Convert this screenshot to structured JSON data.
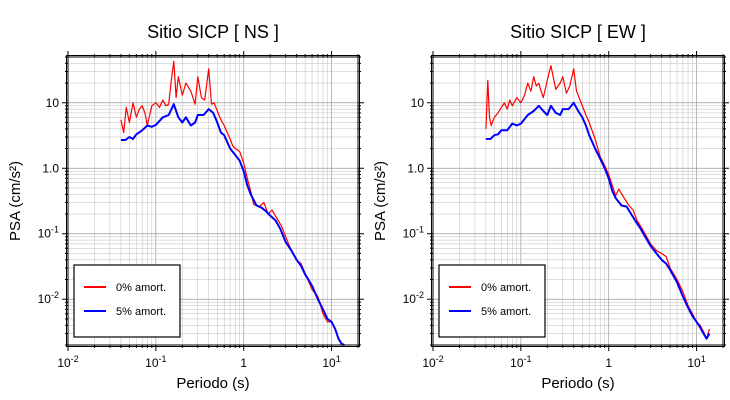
{
  "chart_data": [
    {
      "type": "line",
      "title": "Sitio SICP [ NS ]",
      "xlabel": "Periodo (s)",
      "ylabel": "PSA (cm/s²)",
      "xscale": "log",
      "yscale": "log",
      "xlim": [
        0.01,
        20
      ],
      "ylim": [
        0.002,
        50
      ],
      "grid": true,
      "legend": "bottom-left",
      "series": [
        {
          "name": "0% amort.",
          "color": "#ff0000",
          "x": [
            0.04,
            0.043,
            0.046,
            0.05,
            0.055,
            0.06,
            0.065,
            0.07,
            0.075,
            0.08,
            0.09,
            0.1,
            0.11,
            0.12,
            0.13,
            0.14,
            0.15,
            0.16,
            0.17,
            0.18,
            0.2,
            0.22,
            0.25,
            0.28,
            0.3,
            0.33,
            0.36,
            0.4,
            0.43,
            0.46,
            0.5,
            0.55,
            0.6,
            0.65,
            0.7,
            0.75,
            0.8,
            0.9,
            1.0,
            1.1,
            1.2,
            1.3,
            1.5,
            1.7,
            1.9,
            2.1,
            2.4,
            2.7,
            3.0,
            3.5,
            4.0,
            4.5,
            5.0,
            6.0,
            7.0,
            8.0,
            9.0,
            10.0,
            11.0,
            12.0,
            13.0,
            14.0
          ],
          "y": [
            5.5,
            3.5,
            8.5,
            5.0,
            10.0,
            6.0,
            8.0,
            9.0,
            7.0,
            4.5,
            9.0,
            10.0,
            8.5,
            11.0,
            9.0,
            9.5,
            22.0,
            43.0,
            12.0,
            25.0,
            13.0,
            20.0,
            15.0,
            9.5,
            25.0,
            12.0,
            11.0,
            33.0,
            9.5,
            10.0,
            7.5,
            5.5,
            4.5,
            3.5,
            2.8,
            2.2,
            2.0,
            1.8,
            1.2,
            0.7,
            0.45,
            0.28,
            0.26,
            0.3,
            0.2,
            0.23,
            0.17,
            0.13,
            0.09,
            0.055,
            0.04,
            0.035,
            0.025,
            0.014,
            0.011,
            0.006,
            0.0045,
            0.0045,
            0.0035,
            0.0025,
            0.002,
            0.002
          ]
        },
        {
          "name": "5% amort.",
          "color": "#0000ff",
          "x": [
            0.04,
            0.045,
            0.05,
            0.055,
            0.06,
            0.07,
            0.08,
            0.09,
            0.1,
            0.12,
            0.14,
            0.16,
            0.18,
            0.2,
            0.22,
            0.25,
            0.28,
            0.3,
            0.35,
            0.4,
            0.45,
            0.5,
            0.55,
            0.6,
            0.7,
            0.8,
            0.9,
            1.0,
            1.1,
            1.2,
            1.4,
            1.6,
            1.8,
            2.0,
            2.3,
            2.6,
            3.0,
            3.5,
            4.0,
            4.5,
            5.0,
            6.0,
            7.0,
            8.0,
            9.0,
            10.0,
            11.0,
            12.0,
            13.0,
            14.0
          ],
          "y": [
            2.7,
            2.7,
            3.0,
            2.8,
            3.3,
            3.8,
            4.5,
            4.3,
            4.6,
            6.0,
            6.5,
            9.5,
            6.0,
            5.0,
            6.0,
            4.5,
            5.0,
            6.5,
            6.5,
            8.0,
            7.0,
            5.0,
            3.5,
            3.2,
            2.0,
            1.6,
            1.3,
            0.9,
            0.55,
            0.4,
            0.27,
            0.25,
            0.22,
            0.19,
            0.16,
            0.12,
            0.075,
            0.055,
            0.04,
            0.032,
            0.024,
            0.016,
            0.01,
            0.007,
            0.005,
            0.0045,
            0.0035,
            0.0025,
            0.0021,
            0.002
          ]
        }
      ]
    },
    {
      "type": "line",
      "title": "Sitio SICP [ EW ]",
      "xlabel": "Periodo (s)",
      "ylabel": "PSA (cm/s²)",
      "xscale": "log",
      "yscale": "log",
      "xlim": [
        0.01,
        20
      ],
      "ylim": [
        0.002,
        50
      ],
      "grid": true,
      "legend": "bottom-left",
      "series": [
        {
          "name": "0% amort.",
          "color": "#ff0000",
          "x": [
            0.04,
            0.042,
            0.044,
            0.046,
            0.05,
            0.055,
            0.06,
            0.065,
            0.07,
            0.075,
            0.08,
            0.09,
            0.1,
            0.11,
            0.12,
            0.13,
            0.14,
            0.15,
            0.16,
            0.17,
            0.18,
            0.2,
            0.22,
            0.25,
            0.28,
            0.3,
            0.33,
            0.36,
            0.4,
            0.43,
            0.46,
            0.5,
            0.55,
            0.6,
            0.7,
            0.8,
            0.9,
            1.0,
            1.1,
            1.2,
            1.3,
            1.5,
            1.7,
            1.9,
            2.1,
            2.4,
            2.7,
            3.0,
            3.5,
            4.0,
            4.5,
            5.0,
            6.0,
            7.0,
            8.0,
            9.0,
            10.0,
            11.0,
            12.0,
            13.0,
            14.0
          ],
          "y": [
            4.0,
            22.0,
            6.0,
            4.5,
            6.0,
            7.0,
            8.5,
            10.0,
            8.0,
            11.0,
            9.0,
            12.0,
            10.0,
            13.0,
            20.0,
            15.0,
            25.0,
            18.0,
            20.0,
            15.0,
            12.0,
            22.0,
            37.0,
            16.0,
            20.0,
            25.0,
            14.0,
            18.0,
            33.0,
            15.0,
            12.0,
            9.0,
            6.5,
            5.0,
            2.8,
            1.5,
            1.1,
            0.8,
            0.55,
            0.38,
            0.48,
            0.35,
            0.27,
            0.23,
            0.16,
            0.12,
            0.09,
            0.07,
            0.055,
            0.05,
            0.045,
            0.03,
            0.02,
            0.013,
            0.008,
            0.006,
            0.0045,
            0.004,
            0.0032,
            0.0025,
            0.0035
          ]
        },
        {
          "name": "5% amort.",
          "color": "#0000ff",
          "x": [
            0.04,
            0.045,
            0.05,
            0.055,
            0.06,
            0.07,
            0.08,
            0.09,
            0.1,
            0.12,
            0.14,
            0.16,
            0.18,
            0.2,
            0.22,
            0.25,
            0.28,
            0.3,
            0.35,
            0.4,
            0.45,
            0.5,
            0.55,
            0.6,
            0.7,
            0.8,
            0.9,
            1.0,
            1.1,
            1.2,
            1.4,
            1.6,
            1.8,
            2.0,
            2.3,
            2.6,
            3.0,
            3.5,
            4.0,
            4.5,
            5.0,
            6.0,
            7.0,
            8.0,
            9.0,
            10.0,
            11.0,
            12.0,
            13.0,
            14.0
          ],
          "y": [
            2.8,
            2.8,
            3.2,
            3.3,
            3.8,
            3.8,
            4.8,
            4.5,
            4.8,
            6.5,
            7.5,
            9.0,
            7.5,
            6.5,
            9.0,
            7.0,
            6.5,
            8.0,
            8.0,
            10.0,
            7.5,
            6.0,
            4.5,
            3.2,
            2.0,
            1.4,
            1.0,
            0.7,
            0.45,
            0.35,
            0.27,
            0.26,
            0.2,
            0.16,
            0.12,
            0.09,
            0.065,
            0.05,
            0.04,
            0.035,
            0.028,
            0.018,
            0.011,
            0.0075,
            0.0055,
            0.0045,
            0.0037,
            0.003,
            0.0025,
            0.003
          ]
        }
      ]
    }
  ]
}
